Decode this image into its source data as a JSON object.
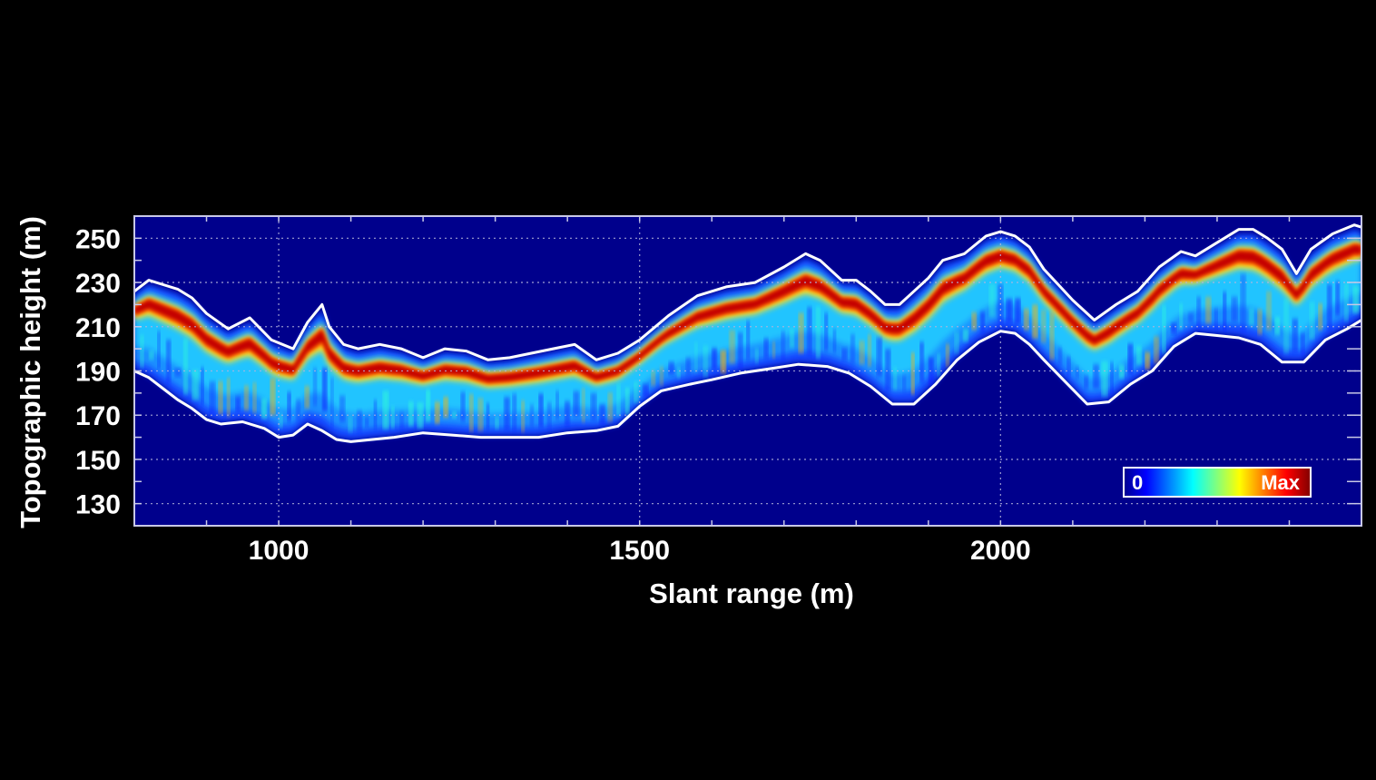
{
  "chart_data": {
    "type": "heatmap",
    "title": "",
    "xlabel": "Slant range (m)",
    "ylabel": "Topographic height (m)",
    "xlim": [
      800,
      2500
    ],
    "ylim": [
      120,
      260
    ],
    "x_ticks": [
      1000,
      1500,
      2000
    ],
    "y_ticks": [
      130,
      150,
      170,
      190,
      210,
      230,
      250
    ],
    "grid": true,
    "colormap": "jet",
    "colorbar": {
      "min_label": "0",
      "max_label": "Max",
      "placement": "bottom-right"
    },
    "colors": {
      "background": "#000000",
      "plot_background": "#00008c",
      "boundary_lines": "#ffffff",
      "grid": "#b4b4dc"
    },
    "series": [
      {
        "role": "upper-boundary",
        "x": [
          800,
          820,
          840,
          860,
          880,
          900,
          930,
          960,
          990,
          1020,
          1040,
          1060,
          1070,
          1090,
          1110,
          1140,
          1170,
          1200,
          1230,
          1260,
          1290,
          1320,
          1350,
          1380,
          1410,
          1440,
          1470,
          1500,
          1540,
          1580,
          1620,
          1660,
          1700,
          1730,
          1750,
          1780,
          1800,
          1820,
          1840,
          1860,
          1880,
          1900,
          1920,
          1950,
          1980,
          2000,
          2020,
          2040,
          2060,
          2080,
          2100,
          2130,
          2160,
          2190,
          2220,
          2250,
          2270,
          2300,
          2330,
          2350,
          2370,
          2390,
          2410,
          2430,
          2460,
          2490,
          2500
        ],
        "y": [
          226,
          231,
          229,
          227,
          223,
          216,
          209,
          214,
          204,
          200,
          212,
          220,
          210,
          202,
          200,
          202,
          200,
          196,
          200,
          199,
          195,
          196,
          198,
          200,
          202,
          195,
          198,
          204,
          215,
          224,
          228,
          230,
          237,
          243,
          240,
          231,
          231,
          226,
          220,
          220,
          226,
          232,
          240,
          243,
          251,
          253,
          251,
          246,
          236,
          229,
          222,
          213,
          220,
          226,
          237,
          244,
          242,
          248,
          254,
          254,
          250,
          245,
          234,
          245,
          252,
          256,
          255
        ]
      },
      {
        "role": "lower-boundary",
        "x": [
          800,
          820,
          840,
          860,
          880,
          900,
          920,
          950,
          980,
          1000,
          1020,
          1040,
          1060,
          1080,
          1100,
          1130,
          1160,
          1200,
          1240,
          1280,
          1320,
          1360,
          1400,
          1440,
          1470,
          1500,
          1530,
          1570,
          1600,
          1640,
          1680,
          1720,
          1760,
          1790,
          1820,
          1850,
          1880,
          1910,
          1940,
          1970,
          2000,
          2020,
          2040,
          2060,
          2090,
          2120,
          2150,
          2180,
          2210,
          2240,
          2270,
          2300,
          2330,
          2360,
          2390,
          2420,
          2450,
          2480,
          2500
        ],
        "y": [
          190,
          187,
          182,
          177,
          173,
          168,
          166,
          167,
          164,
          160,
          161,
          166,
          163,
          159,
          158,
          159,
          160,
          162,
          161,
          160,
          160,
          160,
          162,
          163,
          165,
          174,
          181,
          184,
          186,
          189,
          191,
          193,
          192,
          189,
          183,
          175,
          175,
          184,
          195,
          203,
          208,
          207,
          202,
          195,
          185,
          175,
          176,
          184,
          190,
          201,
          207,
          206,
          205,
          202,
          194,
          194,
          204,
          209,
          213
        ]
      }
    ]
  }
}
